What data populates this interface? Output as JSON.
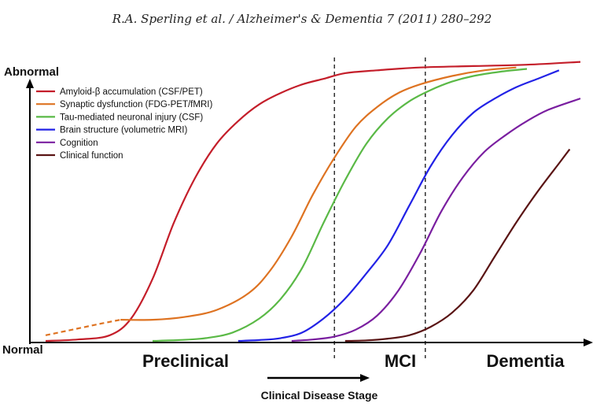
{
  "header": "R.A. Sperling et al. / Alzheimer's & Dementia 7 (2011) 280–292",
  "chart_data": {
    "type": "line",
    "title": "",
    "ylabel_top": "Abnormal",
    "ylabel_bottom": "Normal",
    "xlabel": "Clinical Disease Stage",
    "stages": [
      "Preclinical",
      "MCI",
      "Dementia"
    ],
    "xlim": [
      0,
      100
    ],
    "ylim": [
      0,
      100
    ],
    "stage_boundaries": [
      54,
      71
    ],
    "legend_placement": "top-left",
    "series": [
      {
        "name": "Amyloid-β accumulation (CSF/PET)",
        "color": "#c41e2a",
        "dashed_until": null,
        "x": [
          0,
          6,
          12,
          16,
          20,
          24,
          28,
          32,
          36,
          40,
          44,
          48,
          52,
          56,
          62,
          70,
          80,
          90,
          100
        ],
        "y": [
          0,
          0.5,
          2,
          8,
          22,
          42,
          58,
          70,
          78,
          84,
          88,
          91,
          93,
          95,
          96,
          97,
          97.5,
          98,
          99
        ]
      },
      {
        "name": "Synaptic dysfunction (FDG-PET/fMRI)",
        "color": "#de7322",
        "dashed_until": 14,
        "x": [
          0,
          5,
          10,
          14,
          20,
          26,
          32,
          38,
          42,
          46,
          50,
          54,
          58,
          62,
          66,
          70,
          76,
          82,
          88
        ],
        "y": [
          2,
          4,
          6,
          7.5,
          7.5,
          8.5,
          11,
          17,
          25,
          37,
          52,
          65,
          76,
          83,
          88,
          91,
          94,
          96,
          97
        ]
      },
      {
        "name": "Tau-mediated neuronal injury (CSF)",
        "color": "#5ab946",
        "dashed_until": null,
        "x": [
          20,
          25,
          30,
          35,
          40,
          44,
          48,
          52,
          56,
          60,
          64,
          68,
          72,
          76,
          80,
          85,
          90
        ],
        "y": [
          0,
          0.3,
          1,
          3,
          8,
          15,
          26,
          42,
          57,
          70,
          79,
          85,
          89,
          92,
          94,
          95.5,
          96.5
        ]
      },
      {
        "name": "Brain structure (volumetric MRI)",
        "color": "#2222e6",
        "dashed_until": null,
        "x": [
          36,
          40,
          44,
          48,
          52,
          56,
          60,
          64,
          68,
          72,
          76,
          80,
          84,
          88,
          92,
          96
        ],
        "y": [
          0,
          0.3,
          1,
          3,
          8,
          15,
          24,
          34,
          48,
          62,
          73,
          81,
          86,
          90,
          93,
          96
        ]
      },
      {
        "name": "Cognition",
        "color": "#7a1fa0",
        "dashed_until": null,
        "x": [
          46,
          50,
          54,
          58,
          62,
          66,
          70,
          74,
          78,
          82,
          86,
          90,
          94,
          100
        ],
        "y": [
          0,
          0.5,
          1.5,
          4,
          9,
          18,
          31,
          46,
          58,
          67,
          73,
          78,
          82,
          86
        ]
      },
      {
        "name": "Clinical function",
        "color": "#5a1414",
        "dashed_until": null,
        "x": [
          56,
          60,
          64,
          68,
          72,
          76,
          80,
          84,
          88,
          92,
          96,
          98
        ],
        "y": [
          0,
          0.2,
          0.8,
          2,
          5,
          10,
          18,
          30,
          42,
          53,
          63,
          68
        ]
      }
    ]
  }
}
